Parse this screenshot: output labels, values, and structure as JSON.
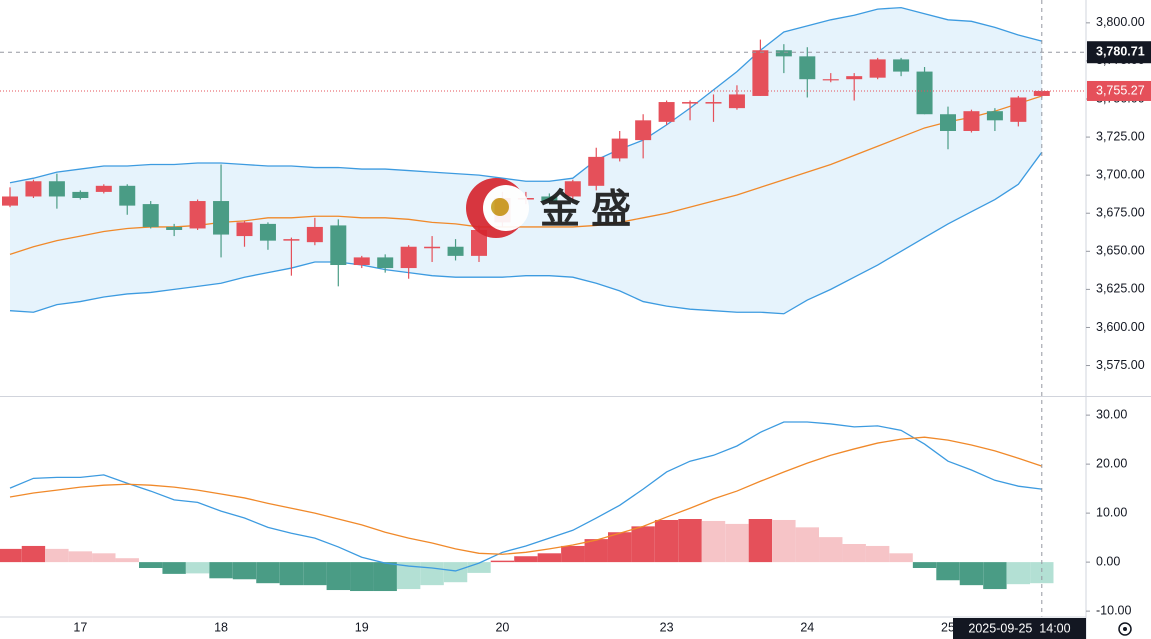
{
  "chart_data": [
    {
      "type": "candlestick",
      "categories": [
        null,
        null,
        null,
        "17",
        null,
        null,
        null,
        null,
        null,
        "18",
        null,
        null,
        null,
        null,
        null,
        "19",
        null,
        null,
        null,
        null,
        null,
        "20",
        null,
        null,
        null,
        null,
        null,
        null,
        "23",
        null,
        null,
        null,
        null,
        null,
        "24",
        null,
        null,
        null,
        null,
        null,
        "25",
        null,
        null,
        null,
        null
      ],
      "open": [
        3680,
        3686,
        3696,
        3689,
        3689,
        3693,
        3681,
        3666,
        3665,
        3683,
        3660,
        3668,
        3657,
        3656,
        3667,
        3641,
        3646,
        3639,
        3652,
        3653,
        3647,
        3669,
        3684,
        3686,
        3686,
        3693,
        3711,
        3723,
        3735,
        3747,
        3747,
        3744,
        3752,
        3782,
        3778,
        3763,
        3763,
        3764,
        3776,
        3768,
        3740,
        3729,
        3742,
        3735,
        3752
      ],
      "high": [
        3692,
        3697,
        3701,
        3690,
        3694,
        3694,
        3683,
        3668,
        3684,
        3707,
        3670,
        3669,
        3659,
        3672,
        3671,
        3647,
        3648,
        3654,
        3660,
        3658,
        3667,
        3689,
        3689,
        3688,
        3697,
        3718,
        3729,
        3740,
        3749,
        3749,
        3753,
        3759,
        3789,
        3786,
        3784,
        3767,
        3767,
        3777,
        3777,
        3771,
        3745,
        3743,
        3744,
        3752,
        3756
      ],
      "low": [
        3679,
        3685,
        3678,
        3684,
        3688,
        3674,
        3665,
        3660,
        3664,
        3646,
        3653,
        3651,
        3634,
        3654,
        3627,
        3639,
        3636,
        3632,
        3643,
        3644,
        3643,
        3666,
        3681,
        3681,
        3683,
        3690,
        3709,
        3711,
        3733,
        3736,
        3735,
        3743,
        3752,
        3767,
        3751,
        3761,
        3749,
        3763,
        3765,
        3740,
        3717,
        3728,
        3729,
        3732,
        3751
      ],
      "close": [
        3686,
        3696,
        3686,
        3685,
        3693,
        3680,
        3666,
        3664,
        3683,
        3661,
        3669,
        3657,
        3658,
        3666,
        3641,
        3646,
        3639,
        3653,
        3653,
        3647,
        3664,
        3685,
        3685,
        3683,
        3696,
        3712,
        3724,
        3736,
        3748,
        3748,
        3748,
        3753,
        3782,
        3778,
        3763,
        3763,
        3765,
        3776,
        3768,
        3740,
        3729,
        3742,
        3736,
        3751,
        3755.27
      ],
      "up_color": "#e5505a",
      "down_color": "#4a9c85",
      "series": [
        {
          "color": "#3d9be0",
          "values": [
            3695,
            3698,
            3702,
            3704,
            3706,
            3706,
            3707,
            3707,
            3708,
            3708,
            3707,
            3706,
            3706,
            3705,
            3705,
            3704,
            3704,
            3703,
            3702,
            3701,
            3700,
            3698,
            3696,
            3696,
            3698,
            3710,
            3717,
            3723,
            3733,
            3744,
            3756,
            3768,
            3782,
            3794,
            3798,
            3802,
            3805,
            3809,
            3810,
            3806,
            3802,
            3801,
            3797,
            3792,
            3788
          ]
        },
        {
          "color": "#f0892a",
          "values": [
            3648,
            3653,
            3657,
            3660,
            3663,
            3665,
            3666,
            3666,
            3667,
            3669,
            3670,
            3672,
            3672,
            3673,
            3673,
            3672,
            3672,
            3671,
            3669,
            3668,
            3666,
            3666,
            3666,
            3666,
            3666,
            3667,
            3669,
            3672,
            3675,
            3679,
            3683,
            3687,
            3692,
            3697,
            3702,
            3707,
            3713,
            3719,
            3725,
            3731,
            3735,
            3738,
            3742,
            3747,
            3752
          ]
        },
        {
          "color": "#3d9be0",
          "values": [
            3611,
            3610,
            3615,
            3617,
            3620,
            3622,
            3623,
            3625,
            3627,
            3629,
            3633,
            3636,
            3639,
            3643,
            3643,
            3641,
            3638,
            3636,
            3634,
            3633,
            3633,
            3633,
            3634,
            3634,
            3633,
            3629,
            3624,
            3617,
            3614,
            3612,
            3611,
            3610,
            3610,
            3609,
            3618,
            3625,
            3633,
            3641,
            3650,
            3659,
            3668,
            3676,
            3684,
            3694,
            3715
          ]
        }
      ],
      "band_color": "#e6f3fc",
      "ylim": [
        3555,
        3815
      ],
      "yticks": [
        {
          "value": 3575,
          "label": "3,575.00"
        },
        {
          "value": 3600,
          "label": "3,600.00"
        },
        {
          "value": 3625,
          "label": "3,625.00"
        },
        {
          "value": 3650,
          "label": "3,650.00"
        },
        {
          "value": 3675,
          "label": "3,675.00"
        },
        {
          "value": 3700,
          "label": "3,700.00"
        },
        {
          "value": 3725,
          "label": "3,725.00"
        },
        {
          "value": 3750,
          "label": "3,750.00"
        },
        {
          "value": 3775,
          "label": "3,775.00"
        },
        {
          "value": 3800,
          "label": "3,800.00"
        }
      ],
      "last_price": {
        "value": 3755.27,
        "label": "3,755.27"
      },
      "crosshair_price": {
        "value": 3780.71,
        "label": "3,780.71"
      },
      "crosshair_time": "2025-09-25  14:00",
      "watermark": "金 盛"
    },
    {
      "type": "macd",
      "series": [
        {
          "color": "#3d9be0",
          "values": [
            15.1,
            17.1,
            17.3,
            17.3,
            17.8,
            16.1,
            14.5,
            12.7,
            12.2,
            10.4,
            9.0,
            7.1,
            5.9,
            4.9,
            3.1,
            1.0,
            -0.2,
            -0.8,
            -1.2,
            -1.8,
            -0.2,
            2.0,
            3.3,
            4.9,
            6.5,
            9.0,
            11.6,
            14.9,
            18.4,
            20.6,
            21.8,
            23.7,
            26.5,
            28.6,
            28.6,
            28.2,
            27.6,
            27.8,
            26.9,
            24.1,
            20.6,
            18.8,
            16.7,
            15.5,
            14.9
          ]
        },
        {
          "color": "#f0892a",
          "values": [
            13.3,
            14.1,
            14.7,
            15.3,
            15.7,
            15.9,
            15.7,
            15.3,
            14.7,
            13.9,
            13.1,
            12.0,
            11.0,
            10.0,
            8.8,
            7.6,
            6.1,
            4.9,
            3.9,
            2.7,
            1.8,
            1.6,
            2.0,
            2.7,
            3.5,
            4.5,
            5.9,
            7.3,
            9.2,
            11.0,
            12.9,
            14.5,
            16.5,
            18.4,
            20.2,
            21.8,
            23.1,
            24.3,
            25.1,
            25.5,
            24.9,
            23.9,
            22.7,
            21.2,
            19.6
          ]
        }
      ],
      "histogram": {
        "values": [
          2.7,
          3.3,
          2.7,
          2.2,
          1.8,
          0.8,
          -1.2,
          -2.4,
          -2.3,
          -3.3,
          -3.5,
          -4.3,
          -4.7,
          -4.7,
          -5.7,
          -5.9,
          -5.9,
          -5.5,
          -4.7,
          -4.1,
          -2.2,
          0.3,
          1.2,
          1.8,
          3.3,
          4.7,
          6.1,
          7.3,
          8.6,
          8.8,
          8.4,
          7.8,
          8.8,
          8.6,
          7.1,
          5.1,
          3.7,
          3.3,
          1.8,
          -1.2,
          -3.7,
          -4.7,
          -5.5,
          -4.5,
          -4.3
        ],
        "up_strong": "#e5505a",
        "up_weak": "#f6c4c7",
        "down_strong": "#4a9c85",
        "down_weak": "#b3e0d4"
      },
      "ylim": [
        -11.2,
        33.7
      ],
      "yticks": [
        {
          "value": -10,
          "label": "-10.00"
        },
        {
          "value": 0,
          "label": "0.00"
        },
        {
          "value": 10,
          "label": "10.00"
        },
        {
          "value": 20,
          "label": "20.00"
        },
        {
          "value": 30,
          "label": "30.00"
        }
      ]
    }
  ]
}
